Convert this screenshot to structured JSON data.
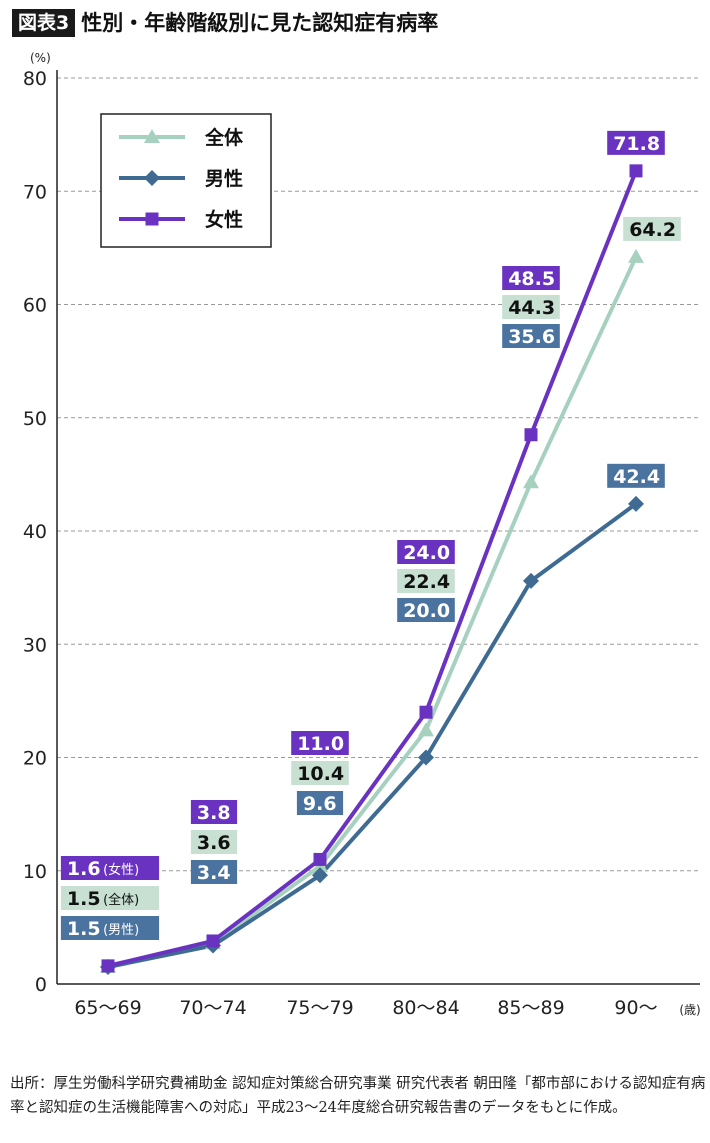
{
  "header": {
    "figure_label": "図表3",
    "title": "性別・年齢階級別に見た認知症有病率"
  },
  "chart_data": {
    "type": "line",
    "ylabel": "(%)",
    "xunit": "(歳)",
    "categories": [
      "65〜69",
      "70〜74",
      "75〜79",
      "80〜84",
      "85〜89",
      "90〜"
    ],
    "ylim": [
      0,
      80
    ],
    "yticks": [
      0,
      10,
      20,
      30,
      40,
      50,
      60,
      70,
      80
    ],
    "grid": true,
    "legend_position": "top-left",
    "series": [
      {
        "name": "全体",
        "color": "#a7d1bf",
        "marker": "triangle",
        "values": [
          1.5,
          3.6,
          10.4,
          22.4,
          44.3,
          64.2
        ],
        "labels": [
          "1.5",
          "3.6",
          "10.4",
          "22.4",
          "44.3",
          "64.2"
        ],
        "label_suffix_first": "(全体)",
        "label_bg": "#c7e0d2",
        "label_fg": "#111111"
      },
      {
        "name": "男性",
        "color": "#3f6b93",
        "marker": "diamond",
        "values": [
          1.5,
          3.4,
          9.6,
          20.0,
          35.6,
          42.4
        ],
        "labels": [
          "1.5",
          "3.4",
          "9.6",
          "20.0",
          "35.6",
          "42.4"
        ],
        "label_suffix_first": "(男性)",
        "label_bg": "#4a73a0",
        "label_fg": "#ffffff"
      },
      {
        "name": "女性",
        "color": "#6a32c0",
        "marker": "square",
        "values": [
          1.6,
          3.8,
          11.0,
          24.0,
          48.5,
          71.8
        ],
        "labels": [
          "1.6",
          "3.8",
          "11.0",
          "24.0",
          "48.5",
          "71.8"
        ],
        "label_suffix_first": "(女性)",
        "label_bg": "#6a32c0",
        "label_fg": "#ffffff"
      }
    ]
  },
  "source": {
    "text": "出所：厚生労働科学研究費補助金 認知症対策総合研究事業 研究代表者 朝田隆「都市部における認知症有病率と認知症の生活機能障害への対応」平成23〜24年度総合研究報告書のデータをもとに作成。"
  }
}
